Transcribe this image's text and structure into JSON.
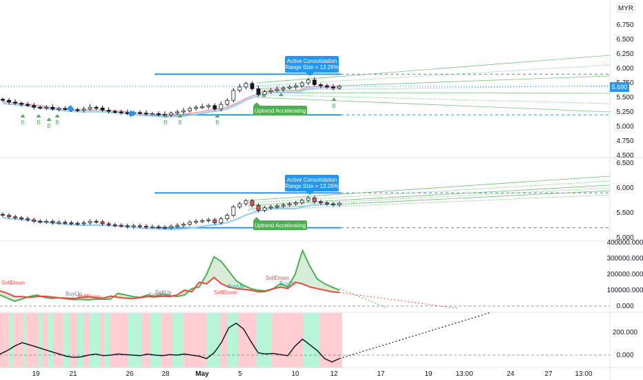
{
  "currency_badge": "MYR",
  "colors": {
    "up": "#26a69a",
    "down": "#ef5350",
    "level_line": "#2196f3",
    "green_label": "#4caf50",
    "blue_label": "#2196f3",
    "last_price_bg": "#2196f3",
    "buy_line": "#4caf50",
    "sell_line": "#f44336",
    "green_zone": "#b7f5d8",
    "red_zone": "#ffcdd2"
  },
  "chart_data": [
    {
      "type": "candlestick",
      "pane": "price-main",
      "yticks": [
        "7.000",
        "6.750",
        "6.500",
        "6.250",
        "6.000",
        "5.750",
        "5.500",
        "5.250",
        "5.000",
        "4.750",
        "4.500"
      ],
      "ylim": [
        4.5,
        7.0
      ],
      "last_price": "5.690",
      "resistance": 5.9,
      "support": 5.2,
      "labels": {
        "consolidation": [
          "Active Consolidation",
          "(Range Size = 13.26%)"
        ],
        "uptrend": "Uptrend Accelerating",
        "buy_marker": "B"
      },
      "buy_signal_dates": [
        "17 Apr",
        "18 Apr",
        "19 Apr",
        "19 Apr",
        "27 Apr",
        "28 Apr",
        "3 May",
        "12 May"
      ],
      "close": [
        5.45,
        5.42,
        5.4,
        5.38,
        5.36,
        5.33,
        5.32,
        5.33,
        5.3,
        5.31,
        5.3,
        5.29,
        5.28,
        5.3,
        5.33,
        5.32,
        5.28,
        5.26,
        5.25,
        5.24,
        5.22,
        5.24,
        5.23,
        5.22,
        5.22,
        5.21,
        5.2,
        5.23,
        5.25,
        5.27,
        5.31,
        5.33,
        5.34,
        5.36,
        5.3,
        5.38,
        5.45,
        5.62,
        5.68,
        5.74,
        5.65,
        5.55,
        5.6,
        5.62,
        5.64,
        5.66,
        5.68,
        5.7,
        5.75,
        5.8,
        5.72,
        5.7,
        5.68,
        5.66,
        5.69
      ]
    },
    {
      "type": "candlestick",
      "pane": "price-secondary",
      "yticks": [
        "6.500",
        "6.000",
        "5.500",
        "5.000"
      ],
      "ylim": [
        5.0,
        6.5
      ],
      "resistance": 5.9,
      "support": 5.2,
      "labels": {
        "consolidation": [
          "Active Consolidation",
          "(Range Size = 13.26%)"
        ],
        "uptrend": "Uptrend Accelerating"
      }
    },
    {
      "type": "line",
      "pane": "volume-pressure",
      "yticks": [
        "400000.000",
        "300000.000",
        "200000.000",
        "100000.000",
        "0.000"
      ],
      "ylim": [
        0,
        400000
      ],
      "series": [
        {
          "name": "BuyUp",
          "values": [
            70000,
            50000,
            30000,
            45000,
            60000,
            70000,
            55000,
            48000,
            52000,
            45000,
            40000,
            42000,
            38000,
            44000,
            42000,
            45000,
            80000,
            70000,
            60000,
            55000,
            70000,
            60000,
            75000,
            65000,
            60000,
            70000,
            110000,
            120000,
            200000,
            310000,
            280000,
            220000,
            160000,
            130000,
            110000,
            100000,
            95000,
            110000,
            140000,
            120000,
            200000,
            350000,
            250000,
            170000,
            140000,
            120000,
            100000
          ]
        },
        {
          "name": "SellDown",
          "values": [
            95000,
            80000,
            60000,
            60000,
            55000,
            60000,
            62000,
            58000,
            52000,
            50000,
            48000,
            55000,
            60000,
            52000,
            50000,
            62000,
            55000,
            50000,
            48000,
            52000,
            60000,
            58000,
            62000,
            60000,
            70000,
            100000,
            90000,
            150000,
            140000,
            180000,
            140000,
            120000,
            110000,
            105000,
            100000,
            90000,
            92000,
            108000,
            120000,
            110000,
            150000,
            140000,
            120000,
            110000,
            100000,
            90000,
            85000
          ]
        }
      ],
      "annotations": [
        "SellDown",
        "BuyUp",
        "SellDown",
        "SellDown",
        "SellUp",
        "SellDown",
        "BuyUp",
        "SellDown",
        "BuyUp"
      ]
    },
    {
      "type": "area",
      "pane": "oscillator",
      "yticks": [
        "200.000",
        "0.000"
      ],
      "ylim": [
        -80,
        330
      ],
      "values": [
        10,
        40,
        80,
        110,
        90,
        70,
        50,
        30,
        10,
        -10,
        -20,
        -15,
        0,
        10,
        -5,
        0,
        10,
        5,
        0,
        -5,
        10,
        0,
        -5,
        5,
        0,
        10,
        0,
        -10,
        -30,
        20,
        110,
        240,
        280,
        230,
        120,
        20,
        10,
        15,
        5,
        -5,
        80,
        140,
        90,
        40,
        -30,
        -60,
        -30
      ]
    }
  ],
  "x_axis": {
    "dates": [
      "19",
      "21",
      "26",
      "28",
      "May",
      "5",
      "10",
      "12",
      "17",
      "19",
      "13:00",
      "24",
      "27",
      "13:00"
    ]
  }
}
